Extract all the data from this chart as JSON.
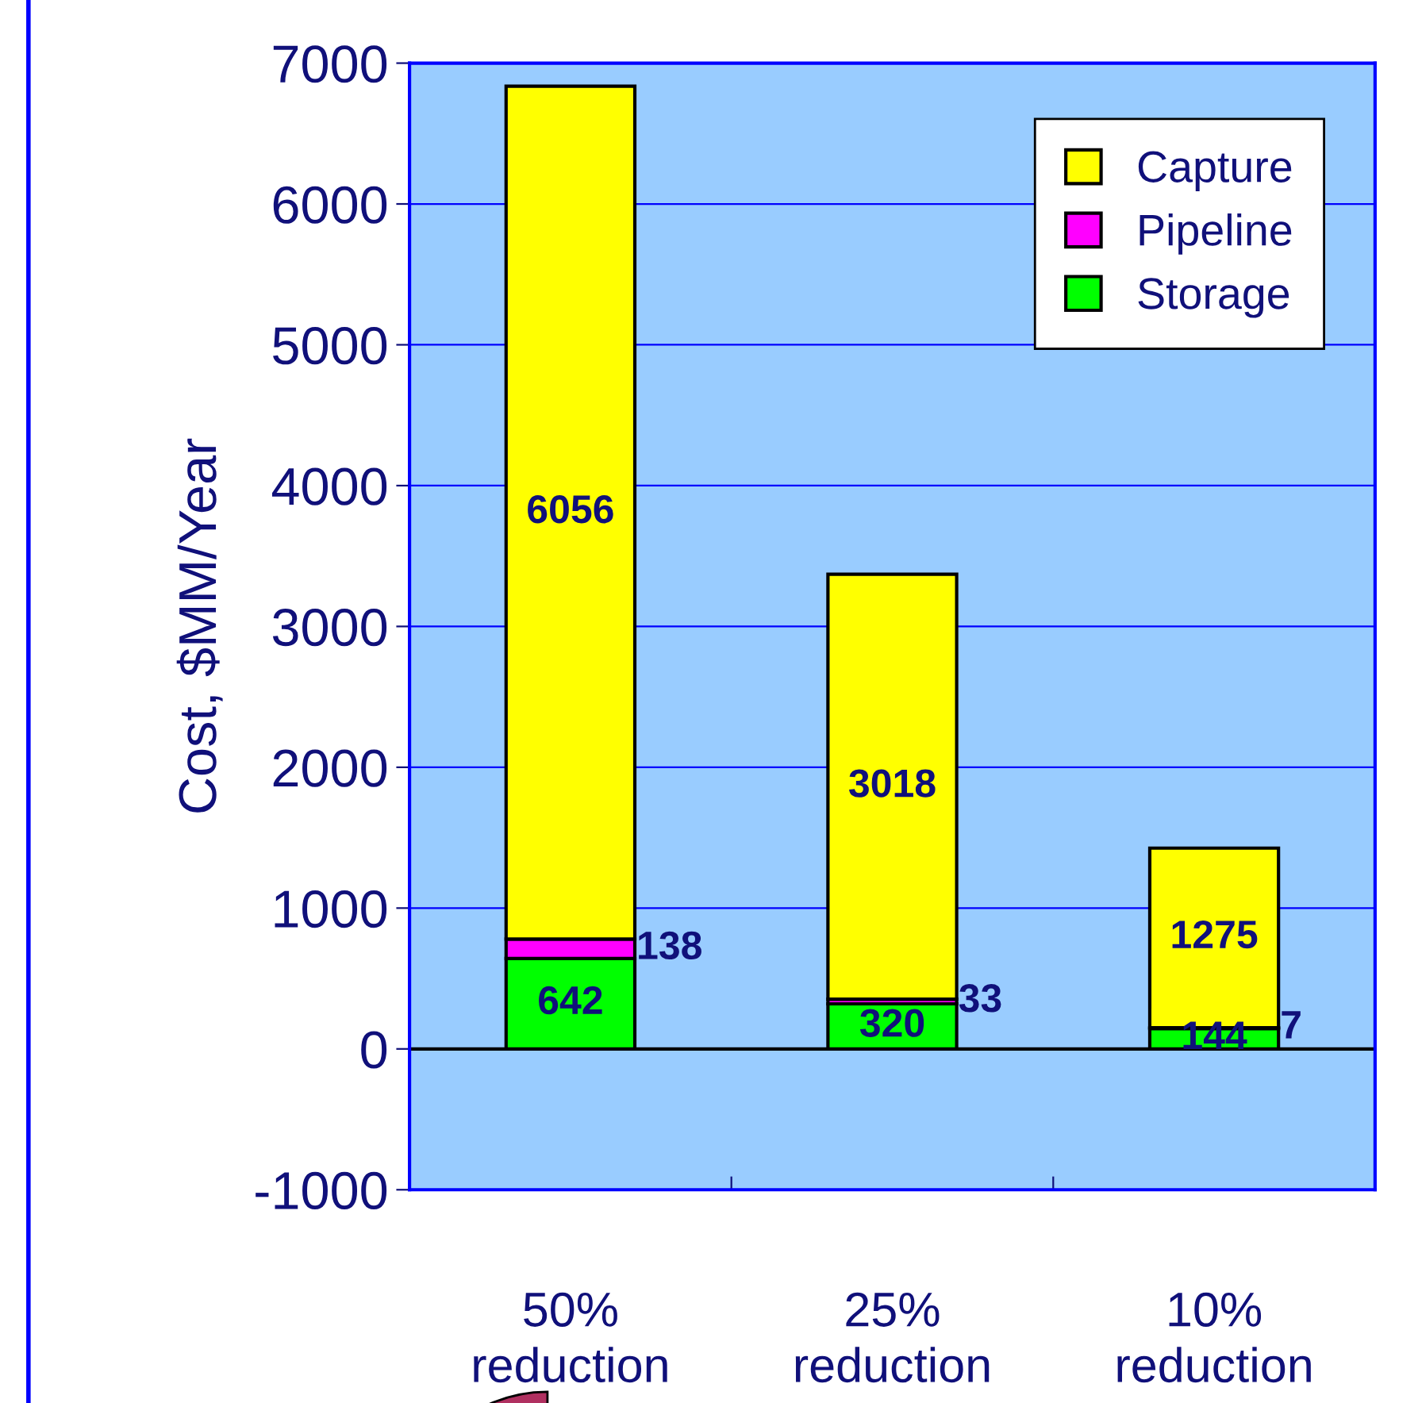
{
  "chart_data": {
    "type": "bar",
    "stacked": true,
    "categories": [
      "50%\nreduction",
      "25%\nreduction",
      "10%\nreduction"
    ],
    "ylabel": "Cost, $MM/Year",
    "series": [
      {
        "name": "Storage",
        "color": "#00ff00",
        "values": [
          642,
          320,
          144
        ]
      },
      {
        "name": "Pipeline",
        "color": "#ff00ff",
        "values": [
          138,
          33,
          7
        ]
      },
      {
        "name": "Capture",
        "color": "#ffff00",
        "values": [
          6056,
          3018,
          1275
        ]
      }
    ],
    "ylim": [
      -1000,
      7000
    ],
    "yticks": [
      -1000,
      0,
      1000,
      2000,
      3000,
      4000,
      5000,
      6000,
      7000
    ],
    "grid": "y",
    "legend": "top right",
    "data_labels": true
  }
}
